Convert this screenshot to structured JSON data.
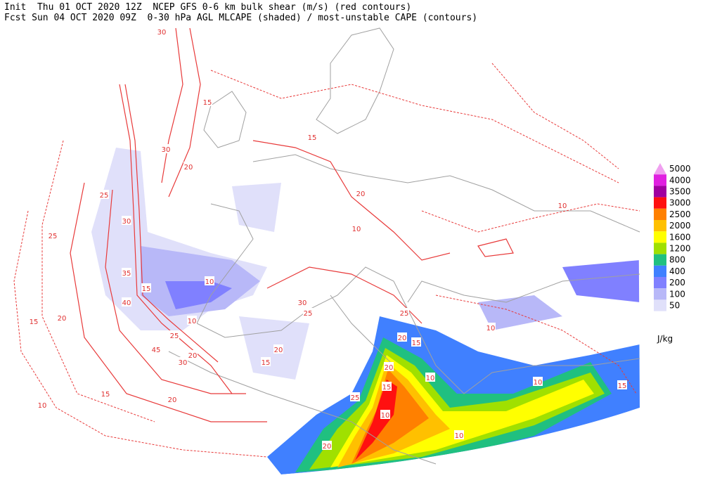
{
  "header": {
    "line1": "Init  Thu 01 OCT 2020 12Z  NCEP GFS 0-6 km bulk shear (m/s) (red contours)",
    "line2": "Fcst Sun 04 OCT 2020 09Z  0-30 hPa AGL MLCAPE (shaded) / most-unstable CAPE (contours)"
  },
  "legend": {
    "unit": "J/kg",
    "levels": [
      {
        "value": 5000,
        "color": "#f0a0f0"
      },
      {
        "value": 4000,
        "color": "#e020e0"
      },
      {
        "value": 3500,
        "color": "#a000a0"
      },
      {
        "value": 3000,
        "color": "#ff1010"
      },
      {
        "value": 2500,
        "color": "#ff8000"
      },
      {
        "value": 2000,
        "color": "#ffc000"
      },
      {
        "value": 1600,
        "color": "#ffff00"
      },
      {
        "value": 1200,
        "color": "#a0e000"
      },
      {
        "value": 800,
        "color": "#20c080"
      },
      {
        "value": 400,
        "color": "#4080ff"
      },
      {
        "value": 200,
        "color": "#8080ff"
      },
      {
        "value": 100,
        "color": "#b8b8f8"
      },
      {
        "value": 50,
        "color": "#e0e0fa"
      }
    ]
  },
  "contour_labels": [
    30,
    15,
    30,
    20,
    25,
    30,
    35,
    15,
    40,
    10,
    10,
    25,
    20,
    45,
    30,
    15,
    20,
    30,
    25,
    10,
    15,
    20,
    25,
    20,
    15,
    20,
    15,
    10,
    10,
    10,
    10,
    20,
    25,
    20,
    15,
    10,
    15,
    20,
    25,
    10,
    15,
    10
  ]
}
